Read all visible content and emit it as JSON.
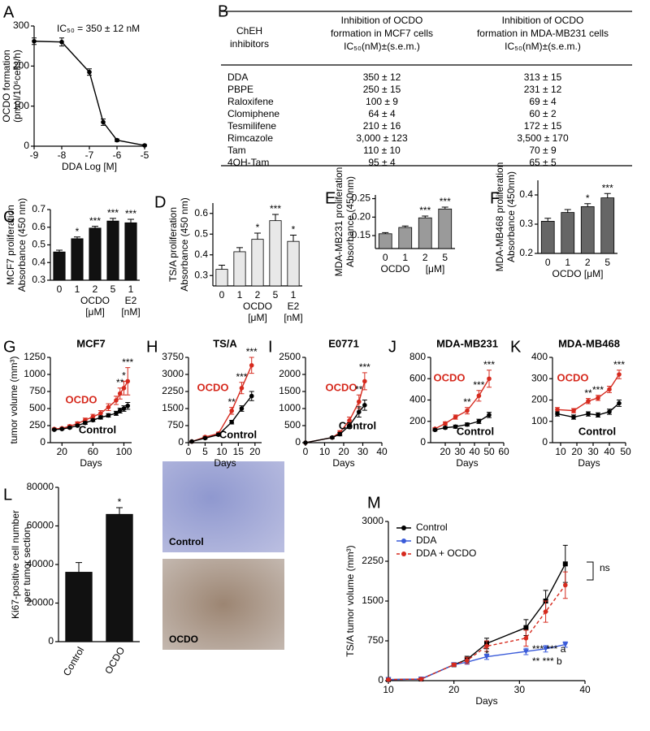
{
  "chart_data": [
    {
      "type": "line",
      "panel": "A",
      "annotation": "IC₅₀ = 350 ± 12 nM",
      "xlabel": "DDA Log [M]",
      "ylabel": [
        "OCDO formation",
        "(pmol/10⁶cells/h)"
      ],
      "x": [
        -9,
        -8,
        -7,
        -6.5,
        -6,
        -5
      ],
      "series": [
        {
          "name": "DDA",
          "color": "#000000",
          "values": [
            262,
            260,
            185,
            60,
            15,
            2
          ],
          "errors": [
            8,
            10,
            8,
            8,
            3,
            2
          ]
        }
      ],
      "xlim": [
        -9,
        -5
      ],
      "xticks": [
        -9,
        -8,
        -7,
        -6,
        -5
      ],
      "ylim": [
        0,
        300
      ],
      "yticks": [
        0,
        100,
        200,
        300
      ]
    },
    {
      "type": "bar",
      "panel": "C",
      "ylabel": [
        "MCF7 proliferation",
        "Absorbance (450 nm)"
      ],
      "xlabel": [
        "OCDO",
        "[μM]",
        "E2",
        "[nM]"
      ],
      "categories": [
        "0",
        "1",
        "2",
        "5",
        "1"
      ],
      "values": [
        0.46,
        0.535,
        0.595,
        0.635,
        0.625
      ],
      "errors": [
        0.01,
        0.01,
        0.01,
        0.015,
        0.02
      ],
      "sig": [
        null,
        "*",
        "***",
        "***",
        "***"
      ],
      "color": "#111111",
      "ylim": [
        0.3,
        0.7
      ],
      "yticks": [
        0.3,
        0.4,
        0.5,
        0.6,
        0.7
      ]
    },
    {
      "type": "bar",
      "panel": "D",
      "ylabel": [
        "TS/A proliferation",
        "Absorbance (450 nm)"
      ],
      "xlabel": [
        "OCDO",
        "[μM]",
        "E2",
        "[nM]"
      ],
      "categories": [
        "0",
        "1",
        "2",
        "5",
        "1"
      ],
      "values": [
        0.33,
        0.415,
        0.475,
        0.565,
        0.465
      ],
      "errors": [
        0.02,
        0.02,
        0.03,
        0.03,
        0.03
      ],
      "sig": [
        null,
        null,
        "*",
        "***",
        "*"
      ],
      "color": "#e8e8e8",
      "ylim": [
        0.25,
        0.65
      ],
      "yticks": [
        0.3,
        0.4,
        0.5,
        0.6
      ]
    },
    {
      "type": "bar",
      "panel": "E",
      "ylabel": [
        "MDA-MB231 proliferation",
        "Absorbance (450nm)"
      ],
      "xlabel": [
        "OCDO",
        "[μM]"
      ],
      "categories": [
        "0",
        "1",
        "2",
        "5"
      ],
      "values": [
        0.155,
        0.172,
        0.198,
        0.222
      ],
      "errors": [
        0.003,
        0.004,
        0.005,
        0.005
      ],
      "sig": [
        null,
        null,
        "***",
        "***"
      ],
      "color": "#9a9a9a",
      "ylim": [
        0.115,
        0.26
      ],
      "yticks": [
        0.15,
        {
          "value": 0.2,
          "label": "0.20"
        },
        0.25
      ]
    },
    {
      "type": "bar",
      "panel": "F",
      "ylabel": [
        "MDA-MB468 proliferation",
        "Absorbance (450nm)"
      ],
      "xlabel": [
        "OCDO [μM]"
      ],
      "categories": [
        "0",
        "1",
        "2",
        "5"
      ],
      "values": [
        0.31,
        0.34,
        0.36,
        0.39
      ],
      "errors": [
        0.01,
        0.01,
        0.01,
        0.015
      ],
      "sig": [
        null,
        null,
        "*",
        "***"
      ],
      "color": "#666666",
      "ylim": [
        0.2,
        0.45
      ],
      "yticks": [
        0.2,
        0.3,
        0.4
      ]
    },
    {
      "type": "line",
      "panel": "G",
      "title": "MCF7",
      "xlabel": "Days",
      "ylabel": "tumor volume (mm³)",
      "x": [
        10,
        20,
        30,
        40,
        50,
        60,
        70,
        80,
        90,
        95,
        100,
        105
      ],
      "series": [
        {
          "name": "OCDO",
          "color": "#d62a1e",
          "values": [
            200,
            210,
            240,
            280,
            330,
            380,
            430,
            520,
            620,
            720,
            800,
            900
          ],
          "errors": [
            15,
            15,
            20,
            25,
            30,
            35,
            40,
            50,
            60,
            80,
            100,
            200
          ]
        },
        {
          "name": "Control",
          "color": "#000000",
          "values": [
            190,
            200,
            220,
            250,
            290,
            330,
            370,
            400,
            430,
            470,
            500,
            540
          ],
          "errors": [
            10,
            10,
            15,
            15,
            20,
            20,
            25,
            25,
            30,
            35,
            40,
            50
          ]
        }
      ],
      "sig": [
        null,
        null,
        null,
        null,
        null,
        null,
        null,
        null,
        null,
        "**",
        "*",
        "***"
      ],
      "xlim": [
        5,
        110
      ],
      "xticks": [
        20,
        60,
        100
      ],
      "ylim": [
        0,
        1250
      ],
      "yticks": [
        0,
        250,
        500,
        750,
        1000,
        1250
      ]
    },
    {
      "type": "line",
      "panel": "H",
      "title": "TS/A",
      "xlabel": "Days",
      "x": [
        1,
        5,
        9,
        13,
        16,
        19
      ],
      "series": [
        {
          "name": "OCDO",
          "color": "#d62a1e",
          "values": [
            50,
            250,
            400,
            1400,
            2400,
            3400
          ],
          "errors": [
            20,
            40,
            60,
            150,
            250,
            350
          ]
        },
        {
          "name": "Control",
          "color": "#000000",
          "values": [
            50,
            200,
            350,
            900,
            1500,
            2050
          ],
          "errors": [
            20,
            40,
            50,
            80,
            120,
            200
          ]
        }
      ],
      "sig": [
        null,
        null,
        null,
        "**",
        "***",
        "***"
      ],
      "xlim": [
        0,
        22
      ],
      "xticks": [
        0,
        5,
        10,
        15,
        20
      ],
      "ylim": [
        0,
        3750
      ],
      "yticks": [
        0,
        750,
        1500,
        2250,
        3000,
        3750
      ]
    },
    {
      "type": "line",
      "panel": "I",
      "title": "E0771",
      "xlabel": "Days",
      "x": [
        0,
        14,
        18,
        23,
        28,
        31
      ],
      "series": [
        {
          "name": "OCDO",
          "color": "#d62a1e",
          "values": [
            0,
            150,
            300,
            650,
            1200,
            1800
          ],
          "errors": [
            0,
            30,
            50,
            100,
            200,
            250
          ]
        },
        {
          "name": "Control",
          "color": "#000000",
          "values": [
            0,
            150,
            250,
            500,
            900,
            1100
          ],
          "errors": [
            0,
            30,
            50,
            80,
            150,
            150
          ]
        }
      ],
      "sig": [
        null,
        null,
        null,
        null,
        "**",
        "***"
      ],
      "xlim": [
        0,
        40
      ],
      "xticks": [
        0,
        10,
        20,
        30,
        40
      ],
      "ylim": [
        0,
        2500
      ],
      "yticks": [
        0,
        500,
        1000,
        1500,
        2000,
        2500
      ]
    },
    {
      "type": "line",
      "panel": "J",
      "title": "MDA-MB231",
      "xlabel": "Days",
      "x": [
        13,
        20,
        27,
        35,
        43,
        50
      ],
      "series": [
        {
          "name": "OCDO",
          "color": "#d62a1e",
          "values": [
            130,
            180,
            240,
            300,
            440,
            600
          ],
          "errors": [
            10,
            15,
            20,
            30,
            50,
            80
          ]
        },
        {
          "name": "Control",
          "color": "#000000",
          "values": [
            120,
            140,
            150,
            170,
            200,
            260
          ],
          "errors": [
            10,
            10,
            15,
            15,
            20,
            25
          ]
        }
      ],
      "sig": [
        null,
        null,
        null,
        "**",
        "***",
        "***"
      ],
      "xlim": [
        10,
        60
      ],
      "xticks": [
        20,
        30,
        40,
        50,
        60
      ],
      "ylim": [
        0,
        800
      ],
      "yticks": [
        0,
        200,
        400,
        600,
        800
      ]
    },
    {
      "type": "line",
      "panel": "K",
      "title": "MDA-MB468",
      "xlabel": "Days",
      "x": [
        8,
        18,
        27,
        33,
        40,
        46
      ],
      "series": [
        {
          "name": "OCDO",
          "color": "#d62a1e",
          "values": [
            155,
            150,
            195,
            210,
            250,
            320
          ],
          "errors": [
            10,
            10,
            12,
            12,
            15,
            20
          ]
        },
        {
          "name": "Control",
          "color": "#000000",
          "values": [
            135,
            120,
            135,
            130,
            145,
            185
          ],
          "errors": [
            10,
            10,
            10,
            10,
            12,
            15
          ]
        }
      ],
      "sig": [
        null,
        null,
        "**",
        "***",
        null,
        "***"
      ],
      "xlim": [
        5,
        50
      ],
      "xticks": [
        10,
        20,
        30,
        40,
        50
      ],
      "ylim": [
        0,
        400
      ],
      "yticks": [
        0,
        100,
        200,
        300,
        400
      ]
    },
    {
      "type": "bar",
      "panel": "L",
      "ylabel": [
        "Ki67-positive cell number",
        "per tumor section"
      ],
      "categories": [
        "Control",
        "OCDO"
      ],
      "values": [
        36000,
        66000
      ],
      "errors": [
        5000,
        3500
      ],
      "sig": [
        null,
        "*"
      ],
      "color": "#111111",
      "ylim": [
        0,
        80000
      ],
      "yticks": [
        0,
        20000,
        40000,
        60000,
        80000
      ]
    },
    {
      "type": "line",
      "panel": "M",
      "xlabel": "Days",
      "ylabel": "TS/A tumor volume (mm³)",
      "legend": "upper left",
      "x": [
        10,
        15,
        20,
        22,
        25,
        31,
        34,
        37
      ],
      "series": [
        {
          "name": "Control",
          "color": "#000000",
          "marker": "square",
          "values": [
            20,
            30,
            300,
            400,
            700,
            1000,
            1500,
            2200
          ],
          "errors": [
            10,
            10,
            30,
            60,
            100,
            150,
            200,
            350
          ]
        },
        {
          "name": "DDA",
          "color": "#3a5bd9",
          "marker": "triangle",
          "values": [
            20,
            30,
            300,
            350,
            450,
            550,
            600,
            680
          ],
          "errors": [
            10,
            10,
            30,
            40,
            50,
            60,
            60,
            50
          ]
        },
        {
          "name": "DDA + OCDO",
          "color": "#d62a1e",
          "marker": "circle",
          "dashed": true,
          "values": [
            20,
            30,
            300,
            380,
            650,
            800,
            1300,
            1800
          ],
          "errors": [
            10,
            10,
            30,
            60,
            100,
            150,
            200,
            250
          ]
        }
      ],
      "notes": [
        "ns",
        "*** *** a",
        "** *** b",
        "*"
      ],
      "xlim": [
        10,
        40
      ],
      "xticks": [
        10,
        20,
        30,
        40
      ],
      "ylim": [
        0,
        3000
      ],
      "yticks": [
        0,
        750,
        1500,
        2250,
        3000
      ]
    }
  ],
  "table": {
    "panel": "B",
    "header": [
      [
        "ChEH",
        "inhibitors"
      ],
      [
        "Inhibition of OCDO",
        "formation in MCF7 cells",
        "IC₅₀(nM)±(s.e.m.)"
      ],
      [
        "Inhibition of OCDO",
        "formation in MDA-MB231 cells",
        "IC₅₀(nM)±(s.e.m.)"
      ]
    ],
    "rows": [
      [
        "DDA",
        "350 ± 12",
        "313 ± 15"
      ],
      [
        "PBPE",
        "250 ± 15",
        "231 ± 12"
      ],
      [
        "Raloxifene",
        "100 ± 9",
        "69 ± 4"
      ],
      [
        "Clomiphene",
        "64 ± 4",
        "60 ± 2"
      ],
      [
        "Tesmilifene",
        "210 ± 16",
        "172 ± 15"
      ],
      [
        "Rimcazole",
        "3,000 ± 123",
        "3,500 ± 170"
      ],
      [
        "Tam",
        "110 ± 10",
        "70 ± 9"
      ],
      [
        "4OH-Tam",
        "95 ± 4",
        "65 ± 5"
      ]
    ]
  },
  "images": {
    "labels": [
      "Control",
      "OCDO"
    ]
  }
}
